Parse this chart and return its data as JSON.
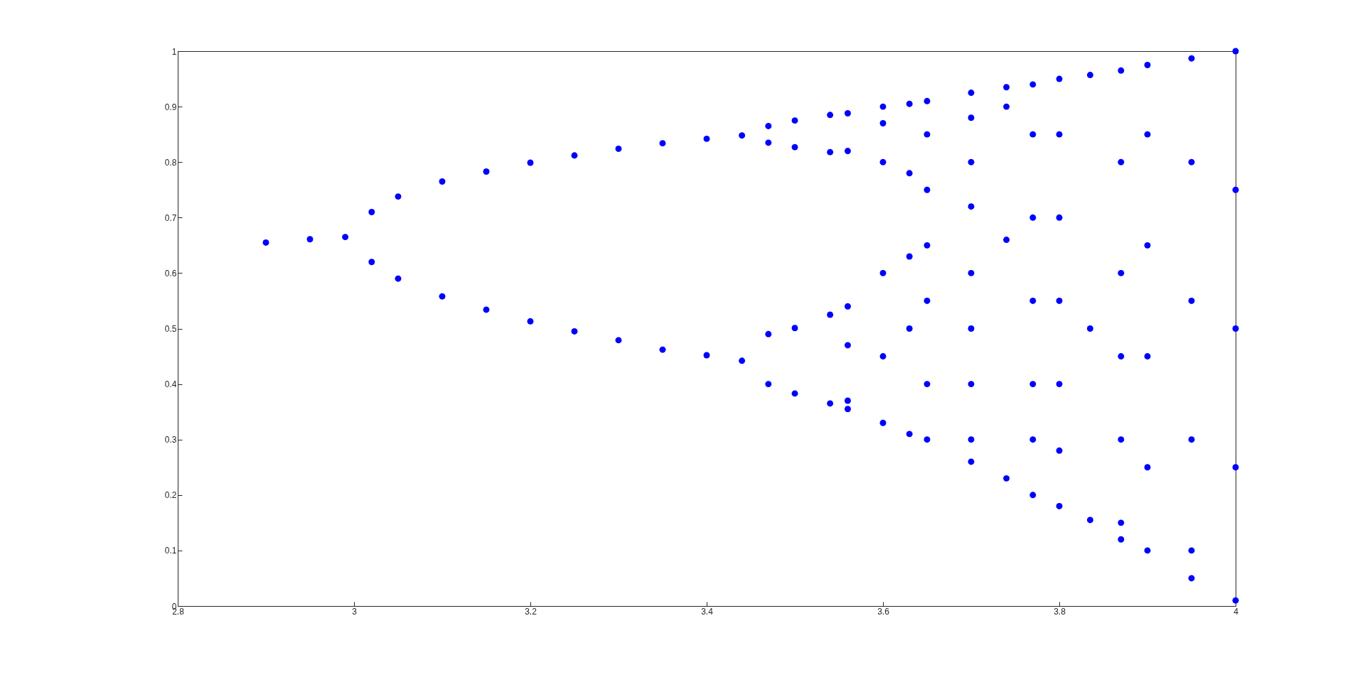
{
  "chart_data": {
    "type": "scatter",
    "xlim": [
      2.8,
      4
    ],
    "xticks": [
      2.8,
      3,
      3.2,
      3.4,
      3.6,
      3.8,
      4
    ],
    "ylim": [
      0,
      1
    ],
    "yticks": [
      0,
      0.1,
      0.2,
      0.3,
      0.4,
      0.5,
      0.6,
      0.7,
      0.8,
      0.9,
      1
    ],
    "grid": false,
    "legend": false,
    "marker": "circle",
    "series": [
      {
        "color": "#0000ff",
        "x": [
          2.9,
          2.95,
          2.99,
          3.02,
          3.02,
          3.05,
          3.05,
          3.1,
          3.1,
          3.15,
          3.15,
          3.2,
          3.2,
          3.25,
          3.25,
          3.3,
          3.3,
          3.35,
          3.35,
          3.4,
          3.4,
          3.44,
          3.44,
          3.47,
          3.47,
          3.47,
          3.47,
          3.5,
          3.5,
          3.5,
          3.5,
          3.54,
          3.54,
          3.54,
          3.54,
          3.56,
          3.56,
          3.56,
          3.56,
          3.56,
          3.56,
          3.6,
          3.6,
          3.6,
          3.6,
          3.6,
          3.6,
          3.63,
          3.63,
          3.63,
          3.63,
          3.63,
          3.65,
          3.65,
          3.65,
          3.65,
          3.65,
          3.65,
          3.65,
          3.7,
          3.7,
          3.7,
          3.7,
          3.7,
          3.7,
          3.7,
          3.7,
          3.7,
          3.74,
          3.74,
          3.74,
          3.74,
          3.77,
          3.77,
          3.77,
          3.77,
          3.77,
          3.77,
          3.77,
          3.8,
          3.8,
          3.8,
          3.8,
          3.8,
          3.8,
          3.8,
          3.835,
          3.835,
          3.835,
          3.87,
          3.87,
          3.87,
          3.87,
          3.87,
          3.87,
          3.87,
          3.9,
          3.9,
          3.9,
          3.9,
          3.9,
          3.9,
          3.95,
          3.95,
          3.95,
          3.95,
          3.95,
          3.95,
          4,
          4,
          4,
          4,
          4
        ],
        "values": [
          0.655,
          0.661,
          0.665,
          0.71,
          0.62,
          0.738,
          0.59,
          0.765,
          0.558,
          0.783,
          0.534,
          0.799,
          0.513,
          0.812,
          0.495,
          0.824,
          0.479,
          0.834,
          0.462,
          0.842,
          0.452,
          0.848,
          0.442,
          0.865,
          0.835,
          0.49,
          0.4,
          0.875,
          0.827,
          0.501,
          0.383,
          0.885,
          0.818,
          0.525,
          0.365,
          0.888,
          0.82,
          0.54,
          0.47,
          0.37,
          0.355,
          0.9,
          0.87,
          0.8,
          0.6,
          0.45,
          0.33,
          0.905,
          0.78,
          0.63,
          0.5,
          0.31,
          0.91,
          0.85,
          0.75,
          0.65,
          0.55,
          0.4,
          0.3,
          0.925,
          0.88,
          0.8,
          0.72,
          0.6,
          0.5,
          0.4,
          0.3,
          0.26,
          0.935,
          0.9,
          0.66,
          0.23,
          0.94,
          0.85,
          0.7,
          0.55,
          0.4,
          0.3,
          0.2,
          0.95,
          0.85,
          0.7,
          0.55,
          0.4,
          0.28,
          0.18,
          0.957,
          0.5,
          0.155,
          0.965,
          0.8,
          0.6,
          0.45,
          0.3,
          0.15,
          0.12,
          0.975,
          0.85,
          0.65,
          0.45,
          0.25,
          0.1,
          0.987,
          0.8,
          0.55,
          0.3,
          0.1,
          0.05,
          1,
          0.75,
          0.5,
          0.25,
          0.01
        ]
      }
    ]
  }
}
